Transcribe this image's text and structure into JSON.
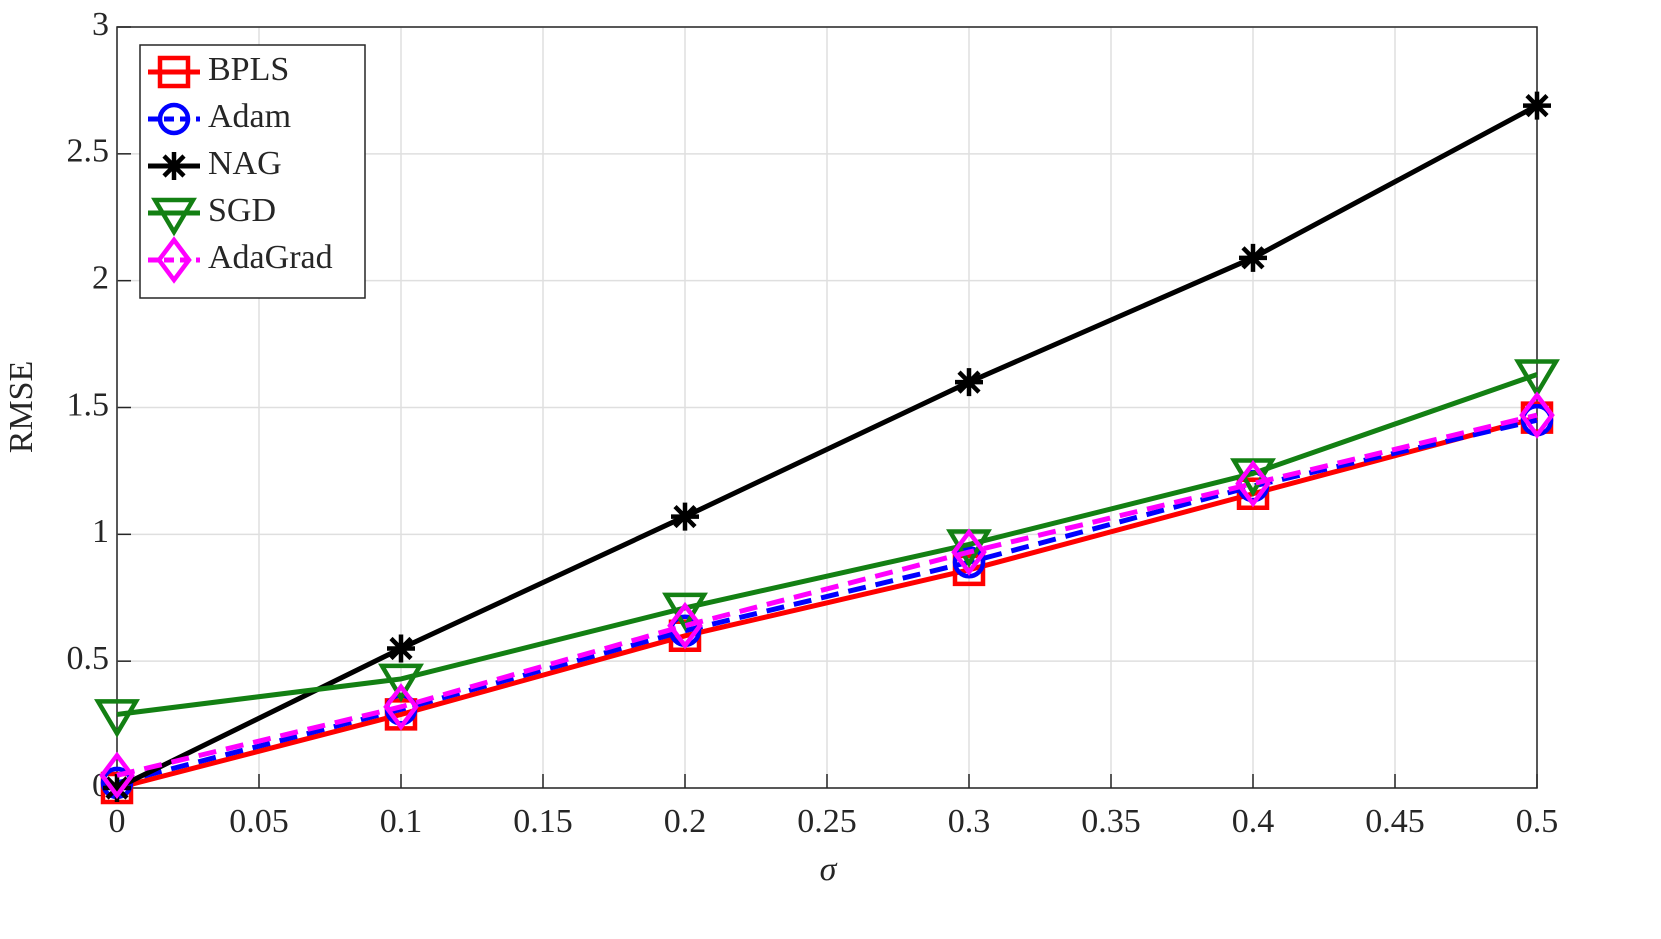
{
  "chart_data": {
    "type": "line",
    "xlabel": "σ",
    "ylabel": "RMSE",
    "x": [
      0,
      0.1,
      0.2,
      0.3,
      0.4,
      0.5
    ],
    "series": [
      {
        "name": "BPLS",
        "color": "#ff0000",
        "marker": "square",
        "dashed": false,
        "values": [
          0,
          0.29,
          0.6,
          0.86,
          1.16,
          1.46
        ]
      },
      {
        "name": "Adam",
        "color": "#0000ff",
        "marker": "circle",
        "dashed": true,
        "values": [
          0.02,
          0.31,
          0.62,
          0.89,
          1.19,
          1.45
        ]
      },
      {
        "name": "NAG",
        "color": "#000000",
        "marker": "asterisk",
        "dashed": false,
        "values": [
          0,
          0.55,
          1.07,
          1.6,
          2.09,
          2.69
        ]
      },
      {
        "name": "SGD",
        "color": "#138013",
        "marker": "triangle-down",
        "dashed": false,
        "values": [
          0.29,
          0.43,
          0.71,
          0.96,
          1.24,
          1.63
        ]
      },
      {
        "name": "AdaGrad",
        "color": "#ff00ff",
        "marker": "diamond",
        "dashed": true,
        "values": [
          0.05,
          0.32,
          0.64,
          0.93,
          1.2,
          1.47
        ]
      }
    ],
    "xlim": [
      0,
      0.5
    ],
    "ylim": [
      0,
      3
    ],
    "xticks": [
      0,
      0.05,
      0.1,
      0.15,
      0.2,
      0.25,
      0.3,
      0.35,
      0.4,
      0.45,
      0.5
    ],
    "yticks": [
      0,
      0.5,
      1,
      1.5,
      2,
      2.5,
      3
    ],
    "grid": true,
    "legend": "upper-left"
  }
}
